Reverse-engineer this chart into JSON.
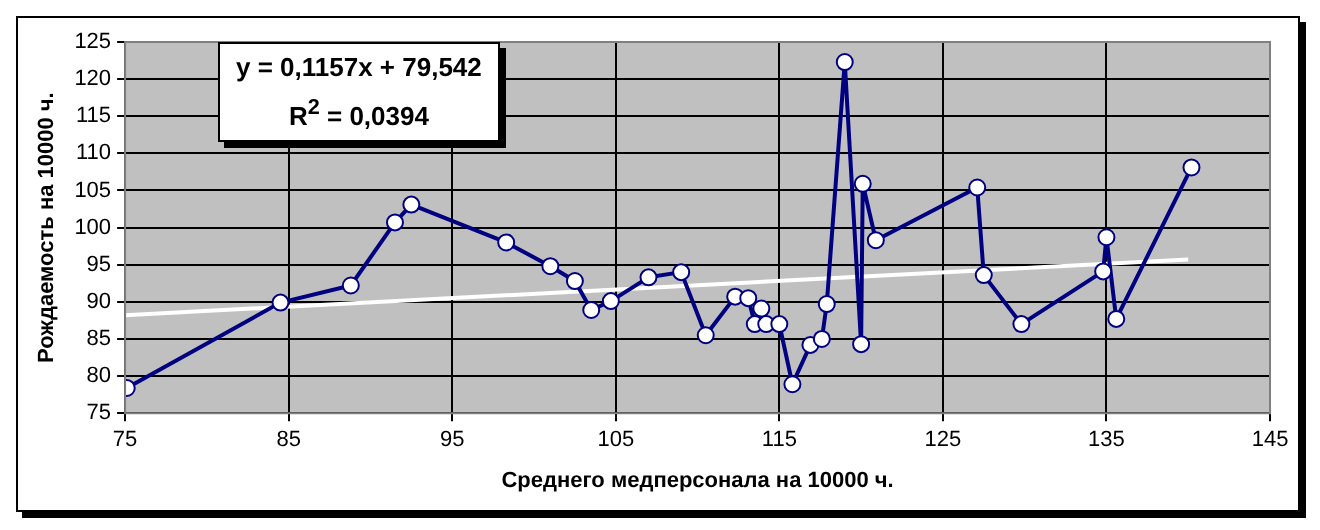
{
  "chart_data": {
    "type": "line",
    "xlabel": "Среднего медперсонала на 10000 ч.",
    "ylabel": "Рождаемость на 10000 ч.",
    "annotations": [
      "y = 0,1157x + 79,542",
      "R$^{2}$ = 0,0394"
    ],
    "xlim": [
      75,
      145
    ],
    "xticks": [
      75,
      85,
      95,
      105,
      115,
      125,
      135,
      145
    ],
    "ylim": [
      75,
      125
    ],
    "yticks": [
      75,
      80,
      85,
      90,
      95,
      100,
      105,
      110,
      115,
      120,
      125
    ],
    "grid": true,
    "legend": false,
    "series": [
      {
        "type": "line",
        "color": "#000080",
        "marker": "circle",
        "x": [
          75.1,
          84.5,
          88.8,
          91.5,
          92.5,
          98.3,
          101,
          102.5,
          103.5,
          104.7,
          107,
          109,
          110.5,
          112.3,
          113.1,
          113.5,
          113.9,
          114.2,
          115,
          115.8,
          116.9,
          117.6,
          117.9,
          119,
          120,
          120.1,
          120.9,
          127.1,
          127.5,
          129.8,
          134.8,
          135,
          135.6,
          140.2
        ],
        "values": [
          78.4,
          89.9,
          92.2,
          100.7,
          103.1,
          98,
          94.8,
          92.8,
          88.9,
          90.1,
          93.3,
          94,
          85.5,
          90.7,
          90.5,
          87,
          89.1,
          87,
          87,
          78.9,
          84.2,
          85,
          89.7,
          122.3,
          84.3,
          105.9,
          98.3,
          105.4,
          93.6,
          87,
          94.1,
          98.7,
          87.7,
          108.1
        ]
      },
      {
        "type": "line",
        "color": "#ffffff",
        "marker": "none",
        "x": [
          75,
          140
        ],
        "values": [
          88.2,
          95.7
        ]
      }
    ]
  }
}
